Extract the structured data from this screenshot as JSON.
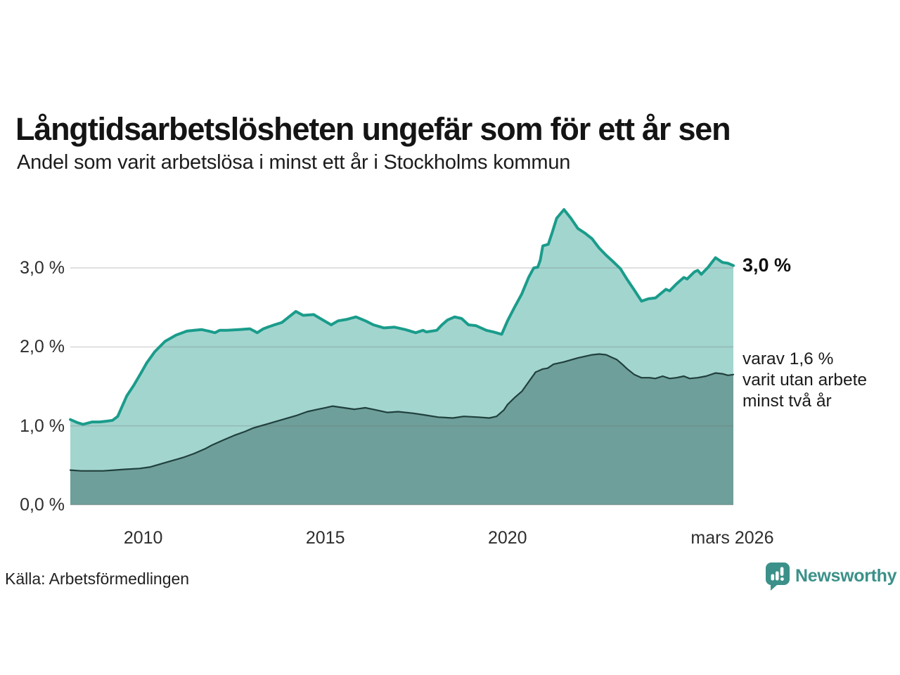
{
  "title": "Långtidsarbetslösheten ungefär som för ett år sen",
  "subtitle": "Andel som varit arbetslösa i minst ett år i Stockholms kommun",
  "source": "Källa: Arbetsförmedlingen",
  "branding": {
    "name": "Newsworthy",
    "color": "#3b9189"
  },
  "annotations": {
    "total_end_label": "3,0 %",
    "dark_end_label": "varav 1,6 %\nvarit utan arbete\nminst två år"
  },
  "colors": {
    "total_line": "#1a9c8b",
    "total_fill": "#a3d5cf",
    "dark_line": "#20403d",
    "dark_fill": "#6f9f9a",
    "gridline": "rgba(105,105,105,0.25)",
    "text": "#1c1c1c"
  },
  "chart_data": {
    "type": "area",
    "title": "Långtidsarbetslösheten ungefär som för ett år sen",
    "subtitle": "Andel som varit arbetslösa i minst ett år i Stockholms kommun",
    "xlabel": "",
    "ylabel": "",
    "x_domain": [
      2008.0,
      2026.2
    ],
    "y_domain": [
      0,
      3.9
    ],
    "grid": true,
    "legend": "direct-labels-at-line-ends",
    "y_ticks": [
      {
        "value": 0.0,
        "label": "0,0 %"
      },
      {
        "value": 1.0,
        "label": "1,0 %"
      },
      {
        "value": 2.0,
        "label": "2,0 %"
      },
      {
        "value": 3.0,
        "label": "3,0 %"
      }
    ],
    "x_ticks": [
      {
        "value": 2010,
        "label": "2010"
      },
      {
        "value": 2015,
        "label": "2015"
      },
      {
        "value": 2020,
        "label": "2020"
      },
      {
        "value": 2026.17,
        "label": "mars 2026"
      }
    ],
    "series": [
      {
        "name": "Andel arbetslösa minst ett år, totalt",
        "end_value_label": "3,0 %",
        "points": [
          [
            2008.0,
            1.08
          ],
          [
            2008.2,
            1.04
          ],
          [
            2008.35,
            1.02
          ],
          [
            2008.6,
            1.05
          ],
          [
            2008.8,
            1.05
          ],
          [
            2009.0,
            1.06
          ],
          [
            2009.16,
            1.07
          ],
          [
            2009.3,
            1.12
          ],
          [
            2009.55,
            1.38
          ],
          [
            2009.75,
            1.52
          ],
          [
            2009.94,
            1.67
          ],
          [
            2010.1,
            1.8
          ],
          [
            2010.32,
            1.94
          ],
          [
            2010.6,
            2.07
          ],
          [
            2010.9,
            2.15
          ],
          [
            2011.2,
            2.2
          ],
          [
            2011.4,
            2.21
          ],
          [
            2011.6,
            2.22
          ],
          [
            2011.8,
            2.2
          ],
          [
            2011.97,
            2.18
          ],
          [
            2012.1,
            2.21
          ],
          [
            2012.3,
            2.21
          ],
          [
            2012.64,
            2.22
          ],
          [
            2012.93,
            2.23
          ],
          [
            2013.05,
            2.2
          ],
          [
            2013.13,
            2.18
          ],
          [
            2013.3,
            2.23
          ],
          [
            2013.42,
            2.25
          ],
          [
            2013.6,
            2.28
          ],
          [
            2013.81,
            2.31
          ],
          [
            2014.0,
            2.38
          ],
          [
            2014.19,
            2.45
          ],
          [
            2014.39,
            2.4
          ],
          [
            2014.68,
            2.41
          ],
          [
            2014.9,
            2.35
          ],
          [
            2015.16,
            2.28
          ],
          [
            2015.35,
            2.33
          ],
          [
            2015.6,
            2.35
          ],
          [
            2015.84,
            2.38
          ],
          [
            2016.1,
            2.33
          ],
          [
            2016.32,
            2.28
          ],
          [
            2016.61,
            2.24
          ],
          [
            2016.9,
            2.25
          ],
          [
            2017.19,
            2.22
          ],
          [
            2017.48,
            2.18
          ],
          [
            2017.68,
            2.21
          ],
          [
            2017.77,
            2.19
          ],
          [
            2018.06,
            2.21
          ],
          [
            2018.2,
            2.28
          ],
          [
            2018.35,
            2.34
          ],
          [
            2018.55,
            2.38
          ],
          [
            2018.74,
            2.36
          ],
          [
            2018.93,
            2.28
          ],
          [
            2019.13,
            2.27
          ],
          [
            2019.42,
            2.21
          ],
          [
            2019.61,
            2.19
          ],
          [
            2019.84,
            2.16
          ],
          [
            2020.0,
            2.33
          ],
          [
            2020.19,
            2.5
          ],
          [
            2020.39,
            2.67
          ],
          [
            2020.58,
            2.88
          ],
          [
            2020.72,
            3.0
          ],
          [
            2020.83,
            3.01
          ],
          [
            2020.9,
            3.1
          ],
          [
            2020.97,
            3.28
          ],
          [
            2021.12,
            3.3
          ],
          [
            2021.22,
            3.44
          ],
          [
            2021.35,
            3.63
          ],
          [
            2021.55,
            3.74
          ],
          [
            2021.74,
            3.63
          ],
          [
            2021.93,
            3.5
          ],
          [
            2022.13,
            3.44
          ],
          [
            2022.32,
            3.37
          ],
          [
            2022.52,
            3.25
          ],
          [
            2022.71,
            3.16
          ],
          [
            2022.9,
            3.08
          ],
          [
            2023.1,
            2.99
          ],
          [
            2023.29,
            2.85
          ],
          [
            2023.48,
            2.72
          ],
          [
            2023.68,
            2.58
          ],
          [
            2023.87,
            2.61
          ],
          [
            2024.06,
            2.62
          ],
          [
            2024.35,
            2.73
          ],
          [
            2024.45,
            2.71
          ],
          [
            2024.64,
            2.8
          ],
          [
            2024.84,
            2.88
          ],
          [
            2024.93,
            2.86
          ],
          [
            2025.13,
            2.95
          ],
          [
            2025.22,
            2.97
          ],
          [
            2025.32,
            2.92
          ],
          [
            2025.51,
            3.01
          ],
          [
            2025.71,
            3.13
          ],
          [
            2025.9,
            3.07
          ],
          [
            2026.05,
            3.06
          ],
          [
            2026.2,
            3.03
          ]
        ]
      },
      {
        "name": "varav utan arbete minst två år",
        "end_value_label": "1,6 %",
        "points": [
          [
            2008.0,
            0.44
          ],
          [
            2008.3,
            0.43
          ],
          [
            2008.6,
            0.43
          ],
          [
            2008.9,
            0.43
          ],
          [
            2009.2,
            0.44
          ],
          [
            2009.5,
            0.45
          ],
          [
            2009.9,
            0.46
          ],
          [
            2010.2,
            0.48
          ],
          [
            2010.5,
            0.52
          ],
          [
            2010.8,
            0.56
          ],
          [
            2011.1,
            0.6
          ],
          [
            2011.4,
            0.65
          ],
          [
            2011.7,
            0.71
          ],
          [
            2011.9,
            0.76
          ],
          [
            2012.2,
            0.82
          ],
          [
            2012.5,
            0.88
          ],
          [
            2012.8,
            0.93
          ],
          [
            2013.0,
            0.97
          ],
          [
            2013.3,
            1.01
          ],
          [
            2013.6,
            1.05
          ],
          [
            2013.9,
            1.09
          ],
          [
            2014.2,
            1.13
          ],
          [
            2014.5,
            1.18
          ],
          [
            2014.8,
            1.21
          ],
          [
            2015.0,
            1.23
          ],
          [
            2015.2,
            1.25
          ],
          [
            2015.5,
            1.23
          ],
          [
            2015.8,
            1.21
          ],
          [
            2016.1,
            1.23
          ],
          [
            2016.4,
            1.2
          ],
          [
            2016.7,
            1.17
          ],
          [
            2017.0,
            1.18
          ],
          [
            2017.4,
            1.16
          ],
          [
            2017.7,
            1.14
          ],
          [
            2018.1,
            1.11
          ],
          [
            2018.5,
            1.1
          ],
          [
            2018.8,
            1.12
          ],
          [
            2019.2,
            1.11
          ],
          [
            2019.5,
            1.1
          ],
          [
            2019.7,
            1.12
          ],
          [
            2019.9,
            1.2
          ],
          [
            2020.0,
            1.27
          ],
          [
            2020.2,
            1.36
          ],
          [
            2020.4,
            1.44
          ],
          [
            2020.6,
            1.57
          ],
          [
            2020.77,
            1.68
          ],
          [
            2020.97,
            1.72
          ],
          [
            2021.1,
            1.73
          ],
          [
            2021.26,
            1.78
          ],
          [
            2021.55,
            1.81
          ],
          [
            2021.93,
            1.86
          ],
          [
            2022.32,
            1.9
          ],
          [
            2022.52,
            1.91
          ],
          [
            2022.71,
            1.9
          ],
          [
            2022.85,
            1.87
          ],
          [
            2023.0,
            1.84
          ],
          [
            2023.15,
            1.78
          ],
          [
            2023.29,
            1.72
          ],
          [
            2023.48,
            1.65
          ],
          [
            2023.68,
            1.61
          ],
          [
            2023.9,
            1.61
          ],
          [
            2024.06,
            1.6
          ],
          [
            2024.26,
            1.63
          ],
          [
            2024.45,
            1.6
          ],
          [
            2024.64,
            1.61
          ],
          [
            2024.84,
            1.63
          ],
          [
            2025.0,
            1.6
          ],
          [
            2025.22,
            1.61
          ],
          [
            2025.45,
            1.63
          ],
          [
            2025.71,
            1.67
          ],
          [
            2025.9,
            1.66
          ],
          [
            2026.05,
            1.64
          ],
          [
            2026.2,
            1.65
          ]
        ]
      }
    ]
  }
}
